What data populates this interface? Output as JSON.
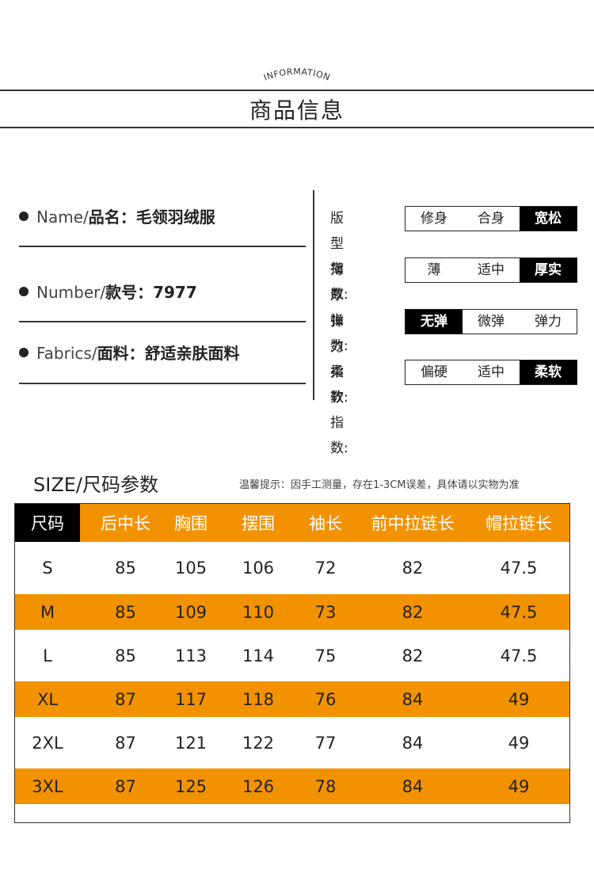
{
  "header": {
    "subtitle": "INFORMATION",
    "title": "商品信息"
  },
  "product_info": [
    {
      "en": "Name/",
      "label": "品名：",
      "value": "毛领羽绒服"
    },
    {
      "en": "Number/",
      "label": "款号：",
      "value": "7977"
    },
    {
      "en": "Fabrics/",
      "label": "面料：",
      "value": "舒适亲肤面料"
    }
  ],
  "indices": [
    {
      "label": "版型指数:",
      "options": [
        "修身",
        "合身",
        "宽松"
      ],
      "selected": "宽松"
    },
    {
      "label": "薄厚指数:",
      "options": [
        "薄",
        "适中",
        "厚实"
      ],
      "selected": "厚实"
    },
    {
      "label": "弹力指数:",
      "options": [
        "无弹",
        "微弹",
        "弹力"
      ],
      "selected": "无弹"
    },
    {
      "label": "柔软指数:",
      "options": [
        "偏硬",
        "适中",
        "柔软"
      ],
      "selected": "柔软"
    }
  ],
  "size_section": {
    "title": "SIZE/尺码参数",
    "note": "温馨提示：因手工测量，存在1-3CM误差，具体请以实物为准"
  },
  "size_table": {
    "headers": [
      "尺码",
      "后中长",
      "胸围",
      "摆围",
      "袖长",
      "前中拉链长",
      "帽拉链长"
    ],
    "rows": [
      [
        "S",
        "85",
        "105",
        "106",
        "72",
        "82",
        "47.5"
      ],
      [
        "M",
        "85",
        "109",
        "110",
        "73",
        "82",
        "47.5"
      ],
      [
        "L",
        "85",
        "113",
        "114",
        "75",
        "82",
        "47.5"
      ],
      [
        "XL",
        "87",
        "117",
        "118",
        "76",
        "84",
        "49"
      ],
      [
        "2XL",
        "87",
        "121",
        "122",
        "77",
        "84",
        "49"
      ],
      [
        "3XL",
        "87",
        "125",
        "126",
        "78",
        "84",
        "49"
      ]
    ]
  },
  "colors": {
    "accent": "#f39200",
    "dark": "#000000"
  }
}
